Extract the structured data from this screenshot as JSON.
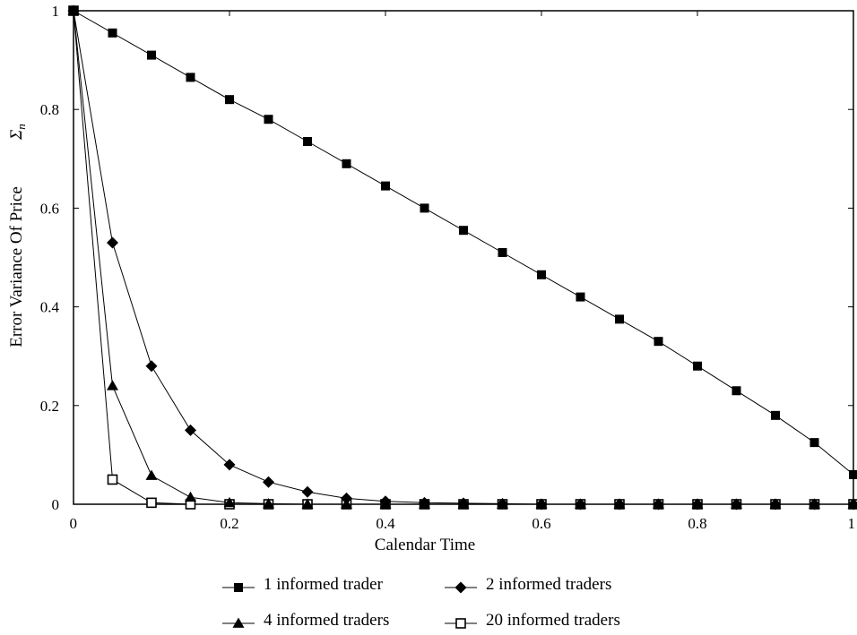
{
  "chart_data": {
    "type": "line",
    "xlabel": "Calendar Time",
    "ylabel": "Error Variance Of Price",
    "ylabel_symbol": "Σ",
    "ylabel_subscript": "n",
    "xlim": [
      0,
      1
    ],
    "ylim": [
      0,
      1
    ],
    "x_ticks": [
      "0",
      "0.2",
      "0.4",
      "0.6",
      "0.8",
      "1"
    ],
    "y_ticks": [
      "0",
      "0.2",
      "0.4",
      "0.6",
      "0.8",
      "1"
    ],
    "grid": false,
    "legend_position": "bottom",
    "x": [
      0,
      0.05,
      0.1,
      0.15,
      0.2,
      0.25,
      0.3,
      0.35,
      0.4,
      0.45,
      0.5,
      0.55,
      0.6,
      0.65,
      0.7,
      0.75,
      0.8,
      0.85,
      0.9,
      0.95,
      1.0
    ],
    "series": [
      {
        "name": "1 informed trader",
        "marker": "filled-square",
        "values": [
          1.0,
          0.955,
          0.91,
          0.865,
          0.82,
          0.78,
          0.735,
          0.69,
          0.645,
          0.6,
          0.555,
          0.51,
          0.465,
          0.42,
          0.375,
          0.33,
          0.28,
          0.23,
          0.18,
          0.125,
          0.06
        ]
      },
      {
        "name": "2 informed traders",
        "marker": "filled-diamond",
        "values": [
          1.0,
          0.53,
          0.28,
          0.15,
          0.08,
          0.045,
          0.025,
          0.012,
          0.006,
          0.003,
          0.002,
          0.001,
          0.0,
          0.0,
          0.0,
          0.0,
          0.0,
          0.0,
          0.0,
          0.0,
          0.0
        ]
      },
      {
        "name": "4 informed traders",
        "marker": "filled-triangle",
        "values": [
          1.0,
          0.24,
          0.058,
          0.014,
          0.003,
          0.001,
          0.0,
          0.0,
          0.0,
          0.0,
          0.0,
          0.0,
          0.0,
          0.0,
          0.0,
          0.0,
          0.0,
          0.0,
          0.0,
          0.0,
          0.0
        ]
      },
      {
        "name": "20 informed traders",
        "marker": "open-square",
        "values": [
          1.0,
          0.05,
          0.003,
          0.0,
          0.0,
          0.0,
          0.0,
          0.0,
          0.0,
          0.0,
          0.0,
          0.0,
          0.0,
          0.0,
          0.0,
          0.0,
          0.0,
          0.0,
          0.0,
          0.0,
          0.0
        ]
      }
    ]
  }
}
